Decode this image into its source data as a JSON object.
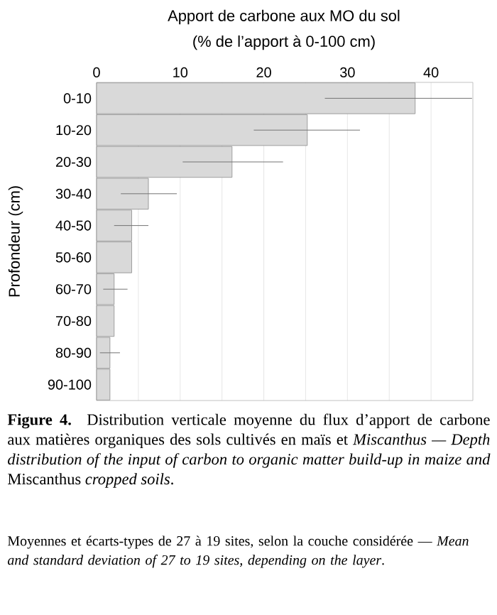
{
  "chart_data": {
    "type": "bar",
    "orientation": "horizontal",
    "title": "Apport de carbone aux MO du sol",
    "xlabel": "(% de l’apport à 0-100 cm)",
    "ylabel": "Profondeur (cm)",
    "categories": [
      "0-10",
      "10-20",
      "20-30",
      "30-40",
      "40-50",
      "50-60",
      "60-70",
      "70-80",
      "80-90",
      "90-100"
    ],
    "values": [
      38.1,
      25.2,
      16.2,
      6.2,
      4.2,
      4.2,
      2.1,
      2.1,
      1.6,
      1.6
    ],
    "errors": [
      [
        27.3,
        44.9
      ],
      [
        18.8,
        31.5
      ],
      [
        10.3,
        22.3
      ],
      [
        2.9,
        9.6
      ],
      [
        2.1,
        6.2
      ],
      null,
      [
        0.8,
        3.7
      ],
      null,
      [
        0.4,
        2.8
      ],
      null
    ],
    "color": "#d9d9d9",
    "xlim": [
      0,
      45
    ],
    "xticks": [
      0,
      {
        "value": 5,
        "label": null
      },
      10,
      {
        "value": 15,
        "label": null
      },
      20,
      {
        "value": 25,
        "label": null
      },
      30,
      {
        "value": 35,
        "label": null
      },
      40
    ],
    "grid": "x",
    "annotations": [
      "**Figure 4.** Distribution verticale moyenne du flux d’apport de carbone aux matières organiques des sols cultivés en maïs et *Miscanthus — Depth distribution of the input of carbon to organic matter build-up in maize and* Miscanthus *cropped soils*.",
      "Moyennes et écarts-types de 27 à 19 sites, selon la couche considérée — *Mean and standard deviation of 27 to 19 sites, depending on the layer*."
    ]
  }
}
